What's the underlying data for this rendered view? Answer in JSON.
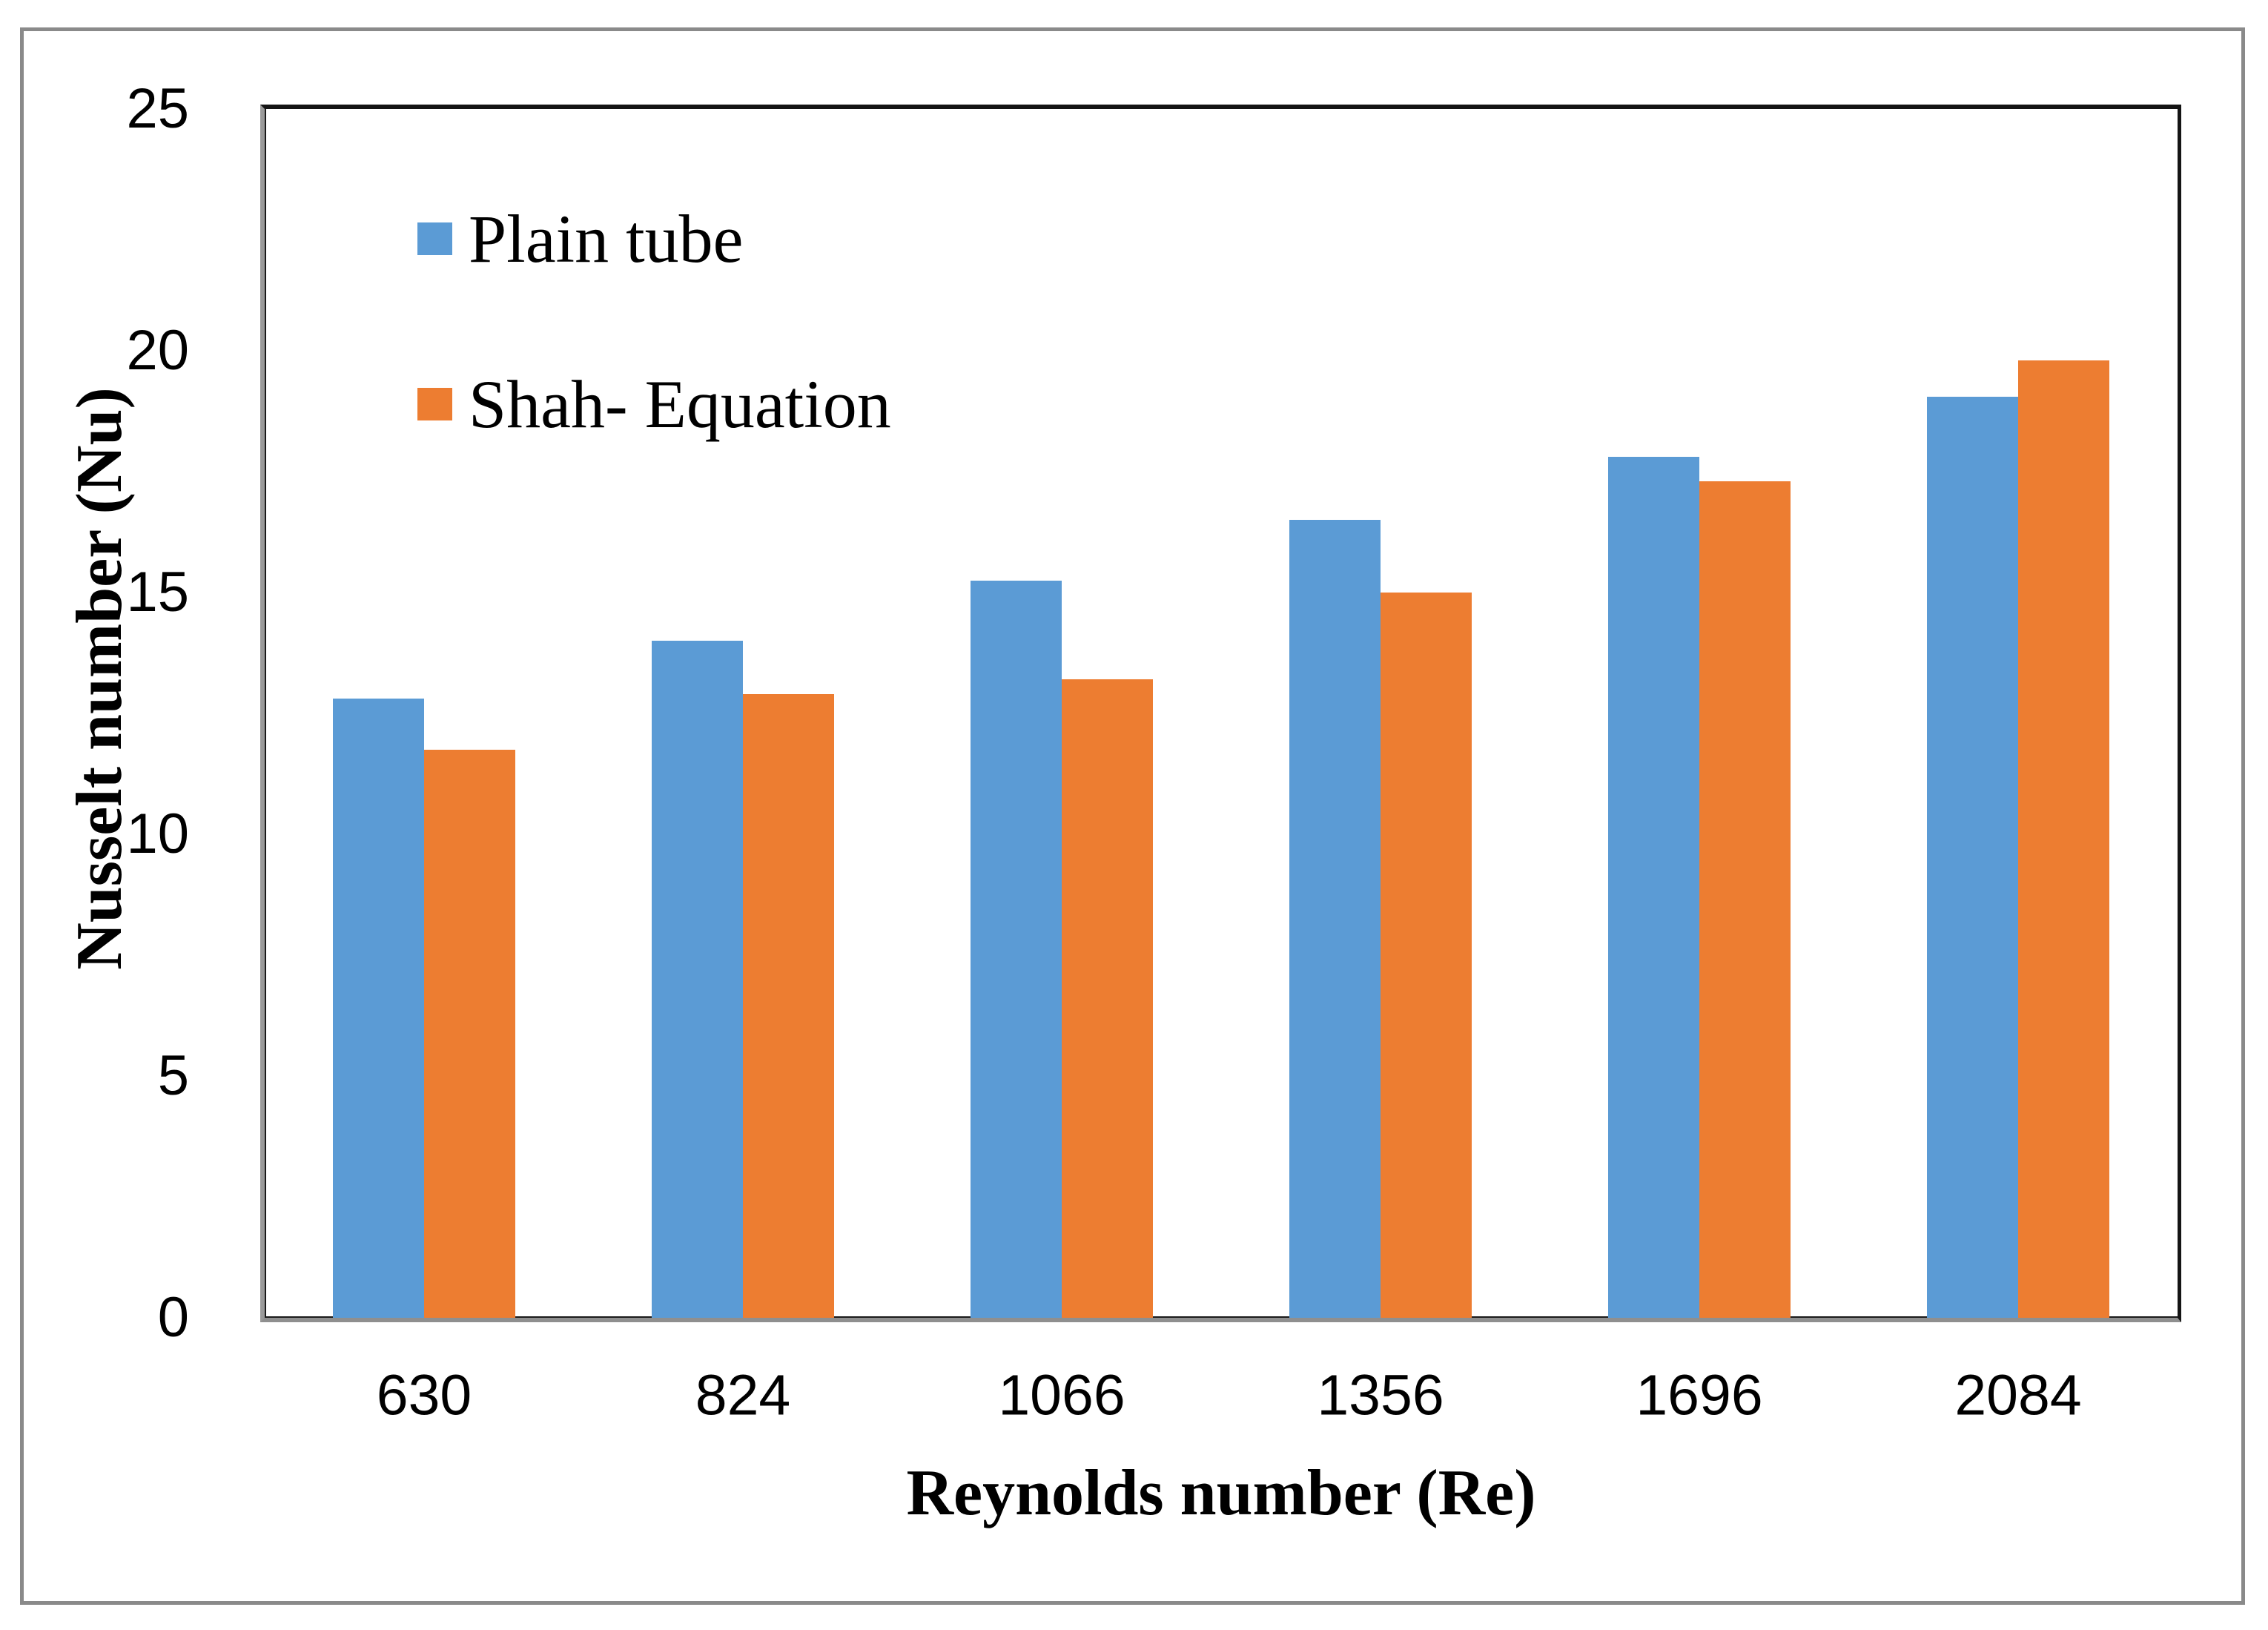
{
  "figure": {
    "description": "Grouped column chart comparing experimental plain tube Nusselt numbers with Shah equation predictions over Reynolds number"
  },
  "chart_data": {
    "type": "bar",
    "title": "",
    "xlabel": "Reynolds number (Re)",
    "ylabel": "Nusselt number (Nu)",
    "categories": [
      "630",
      "824",
      "1066",
      "1356",
      "1696",
      "2084"
    ],
    "series": [
      {
        "name": "Plain tube",
        "color": "#5B9BD5",
        "values": [
          12.8,
          14.0,
          15.25,
          16.5,
          17.8,
          19.05
        ]
      },
      {
        "name": "Shah- Equation",
        "color": "#ED7D31",
        "values": [
          11.75,
          12.9,
          13.2,
          15.0,
          17.3,
          19.8
        ]
      }
    ],
    "ylim": [
      0,
      25
    ],
    "yticks": [
      0,
      5,
      10,
      15,
      20,
      25
    ],
    "grid": false,
    "legend_position": "upper-left-inside",
    "bar_gap_within_group": 0
  },
  "colors": {
    "frame_gray": "#8a8a8a",
    "axis_gray": "#8f8f8f",
    "axis_black": "#141414",
    "background": "#ffffff",
    "text": "#000000"
  }
}
